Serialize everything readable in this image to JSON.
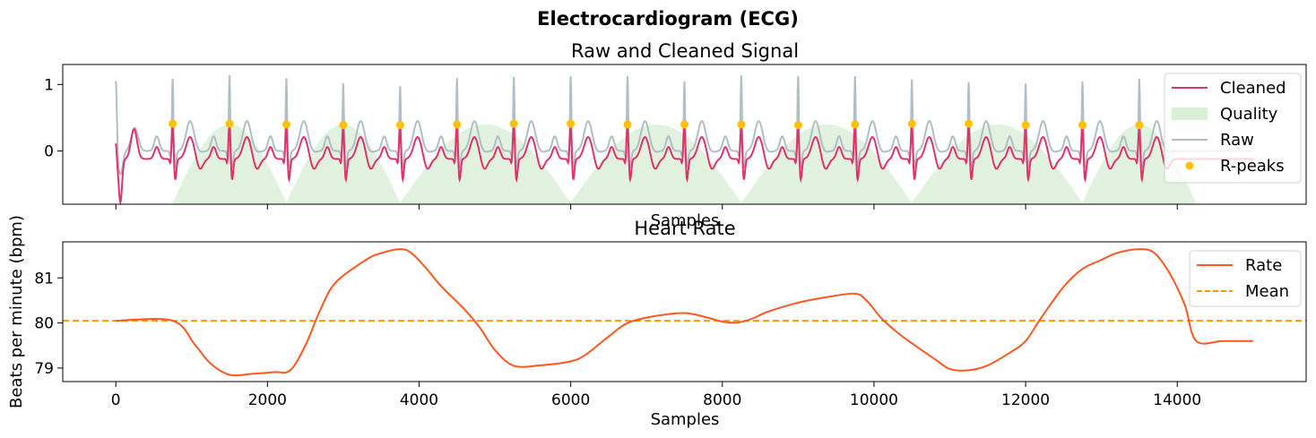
{
  "figure": {
    "suptitle": "Electrocardiogram (ECG)",
    "shared_ylabel": "Beats per minute (bpm)"
  },
  "chart_data": [
    {
      "type": "line",
      "title": "Raw and Cleaned Signal",
      "xlabel": "Samples",
      "ylabel": "",
      "xlim": [
        -700,
        15700
      ],
      "ylim": [
        -0.8,
        1.3
      ],
      "yticks": [
        1,
        0
      ],
      "show_xtick_labels": false,
      "grid": false,
      "legend_position": "upper right",
      "legend": [
        "Cleaned",
        "Quality",
        "Raw",
        "R-peaks"
      ],
      "colors": {
        "cleaned": "#e0336b",
        "quality": "#d9efd6",
        "raw": "#b0bec5",
        "r_peaks": "#ffc107"
      },
      "r_peaks": {
        "x": [
          750,
          1500,
          2250,
          3000,
          3750,
          4500,
          5250,
          6000,
          6750,
          7500,
          8250,
          9000,
          9750,
          10500,
          11250,
          12000,
          12750,
          13500
        ],
        "y": [
          0.41,
          0.41,
          0.4,
          0.39,
          0.39,
          0.4,
          0.41,
          0.41,
          0.4,
          0.4,
          0.4,
          0.39,
          0.4,
          0.41,
          0.41,
          0.39,
          0.39,
          0.39
        ]
      },
      "raw_spike_heights": [
        1.14,
        1.19,
        1.15,
        1.07,
        1.03,
        1.15,
        1.17,
        1.18,
        1.18,
        1.1,
        1.19,
        1.18,
        1.18,
        1.13,
        1.09,
        1.07,
        1.1,
        1.14
      ],
      "quality_range": [
        750,
        14250
      ],
      "quality_humps": [
        750,
        2250,
        3750,
        6000,
        8250,
        10500,
        12750,
        14250
      ]
    },
    {
      "type": "line",
      "title": "Heart Rate",
      "xlabel": "Samples",
      "ylabel": "Beats per minute (bpm)",
      "xlim": [
        -700,
        15700
      ],
      "ylim": [
        78.7,
        81.8
      ],
      "xticks": [
        0,
        2000,
        4000,
        6000,
        8000,
        10000,
        12000,
        14000
      ],
      "yticks": [
        81,
        80,
        79
      ],
      "grid": false,
      "legend_position": "upper right",
      "legend": [
        "Rate",
        "Mean"
      ],
      "colors": {
        "rate": "#ff5722",
        "mean": "#ff9800"
      },
      "mean": 80.05,
      "series": [
        {
          "name": "Rate",
          "x": [
            0,
            750,
            1050,
            1250,
            1500,
            1800,
            2100,
            2300,
            2500,
            2700,
            2900,
            3300,
            3500,
            3750,
            3900,
            4100,
            4300,
            4600,
            4800,
            5000,
            5250,
            5600,
            6000,
            6200,
            6500,
            6750,
            7100,
            7500,
            7800,
            8000,
            8200,
            8400,
            8600,
            9000,
            9400,
            9750,
            9900,
            10100,
            10300,
            10500,
            10800,
            11000,
            11250,
            11500,
            11800,
            12000,
            12200,
            12500,
            12750,
            13000,
            13200,
            13500,
            13700,
            13900,
            14100,
            14250,
            14600,
            15000
          ],
          "y": [
            80.05,
            80.05,
            79.5,
            79.1,
            78.85,
            78.87,
            78.91,
            78.95,
            79.5,
            80.3,
            80.9,
            81.4,
            81.55,
            81.64,
            81.55,
            81.2,
            80.8,
            80.3,
            79.9,
            79.4,
            79.05,
            79.06,
            79.15,
            79.3,
            79.7,
            80.0,
            80.15,
            80.22,
            80.12,
            80.03,
            80.01,
            80.1,
            80.25,
            80.45,
            80.58,
            80.65,
            80.5,
            80.1,
            79.8,
            79.55,
            79.2,
            78.98,
            78.95,
            79.06,
            79.35,
            79.6,
            80.1,
            80.8,
            81.2,
            81.4,
            81.55,
            81.64,
            81.55,
            81.1,
            80.4,
            79.6,
            79.6,
            79.6
          ]
        }
      ]
    }
  ]
}
